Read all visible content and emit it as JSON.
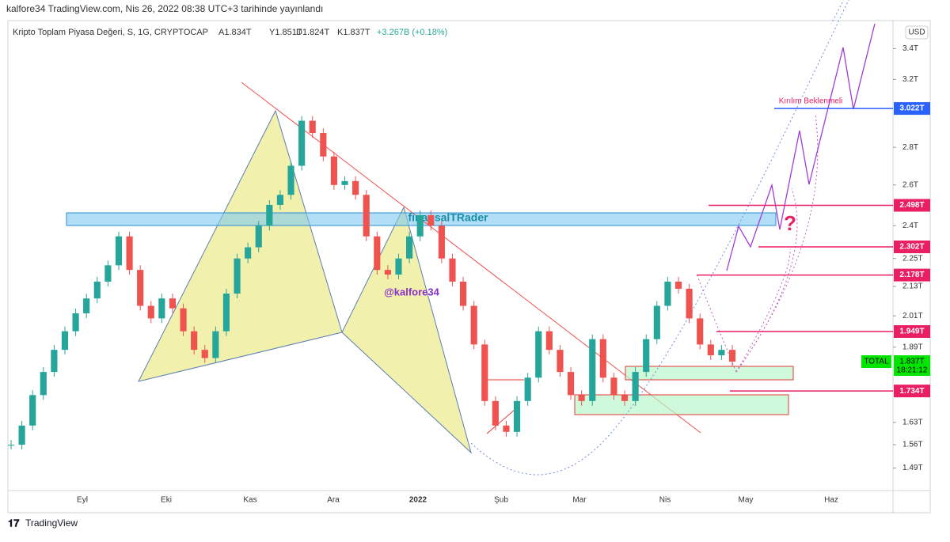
{
  "header": {
    "publisher": "kalfore34 TradingView.com, Nis 26, 2022 08:38 UTC+3 tarihinde yayınlandı"
  },
  "legend": {
    "symbol": "Kripto Toplam Piyasa Değeri, S, 1G, CRYPTOCAP",
    "open": "A1.834T",
    "high": "Y1.851T",
    "low": "D1.824T",
    "close": "K1.837T",
    "change": "+3.267B (+0.18%)"
  },
  "currency": "USD",
  "footer": {
    "brand": "TradingView"
  },
  "annotations": {
    "watermark": "finansalTRader",
    "handle": "@kalfore34",
    "breakout": "Kırılım Beklenmeli",
    "question": "?"
  },
  "chart_data": {
    "type": "candlestick",
    "log": true,
    "x_labels": [
      "Eyl",
      "Eki",
      "Kas",
      "Ara",
      "2022",
      "Şub",
      "Mar",
      "Nis",
      "May",
      "Haz"
    ],
    "values": [
      1.56,
      1.62,
      1.72,
      1.8,
      1.88,
      1.95,
      2.02,
      2.08,
      2.15,
      2.22,
      2.35,
      2.2,
      2.05,
      2.0,
      2.08,
      2.04,
      1.95,
      1.88,
      1.85,
      1.95,
      2.1,
      2.25,
      2.3,
      2.4,
      2.5,
      2.55,
      2.7,
      2.95,
      2.88,
      2.75,
      2.6,
      2.62,
      2.55,
      2.35,
      2.2,
      2.18,
      2.25,
      2.35,
      2.45,
      2.4,
      2.25,
      2.15,
      2.05,
      1.9,
      1.7,
      1.62,
      1.6,
      1.7,
      1.78,
      1.95,
      1.88,
      1.8,
      1.72,
      1.7,
      1.92,
      1.78,
      1.72,
      1.7,
      1.8,
      1.92,
      2.05,
      2.15,
      2.12,
      2.0,
      1.9,
      1.86,
      1.88,
      1.837
    ],
    "up_color": "#26a69a",
    "down_color": "#ef5350",
    "ylim": [
      1.43,
      3.57
    ],
    "yticks": [
      {
        "value": 3.4,
        "label": "3.4T"
      },
      {
        "value": 3.2,
        "label": "3.2T"
      },
      {
        "value": 2.8,
        "label": "2.8T"
      },
      {
        "value": 2.6,
        "label": "2.6T"
      },
      {
        "value": 2.4,
        "label": "2.4T"
      },
      {
        "value": 2.25,
        "label": "2.25T"
      },
      {
        "value": 2.13,
        "label": "2.13T"
      },
      {
        "value": 2.01,
        "label": "2.01T"
      },
      {
        "value": 1.89,
        "label": "1.89T"
      },
      {
        "value": 1.63,
        "label": "1.63T"
      },
      {
        "value": 1.56,
        "label": "1.56T"
      },
      {
        "value": 1.49,
        "label": "1.49T"
      }
    ],
    "levels": [
      {
        "value": 3.022,
        "label": "3.022T",
        "color": "#2962ff"
      },
      {
        "value": 2.498,
        "label": "2.498T",
        "color": "#e91e63"
      },
      {
        "value": 2.302,
        "label": "2.302T",
        "color": "#e91e63"
      },
      {
        "value": 2.178,
        "label": "2.178T",
        "color": "#e91e63"
      },
      {
        "value": 1.949,
        "label": "1.949T",
        "color": "#e91e63"
      },
      {
        "value": 1.734,
        "label": "1.734T",
        "color": "#e91e63"
      }
    ],
    "last": {
      "name": "TOTAL",
      "value": 1.837,
      "label": "1.837T",
      "countdown": "18:21:12",
      "color": "#00e600"
    }
  }
}
